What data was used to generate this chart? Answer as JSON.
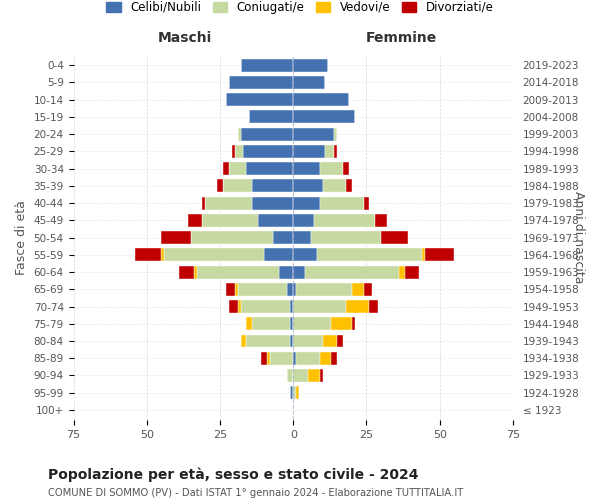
{
  "age_groups": [
    "100+",
    "95-99",
    "90-94",
    "85-89",
    "80-84",
    "75-79",
    "70-74",
    "65-69",
    "60-64",
    "55-59",
    "50-54",
    "45-49",
    "40-44",
    "35-39",
    "30-34",
    "25-29",
    "20-24",
    "15-19",
    "10-14",
    "5-9",
    "0-4"
  ],
  "birth_years": [
    "≤ 1923",
    "1924-1928",
    "1929-1933",
    "1934-1938",
    "1939-1943",
    "1944-1948",
    "1949-1953",
    "1954-1958",
    "1959-1963",
    "1964-1968",
    "1969-1973",
    "1974-1978",
    "1979-1983",
    "1984-1988",
    "1989-1993",
    "1994-1998",
    "1999-2003",
    "2004-2008",
    "2009-2013",
    "2014-2018",
    "2019-2023"
  ],
  "male": {
    "celibi": [
      0,
      1,
      0,
      0,
      1,
      1,
      1,
      2,
      5,
      10,
      7,
      12,
      14,
      14,
      16,
      17,
      18,
      15,
      23,
      22,
      18
    ],
    "coniugati": [
      0,
      0,
      2,
      8,
      15,
      13,
      17,
      17,
      28,
      34,
      28,
      19,
      16,
      10,
      6,
      3,
      1,
      0,
      0,
      0,
      0
    ],
    "vedovi": [
      0,
      0,
      0,
      1,
      2,
      2,
      1,
      1,
      1,
      1,
      0,
      0,
      0,
      0,
      0,
      0,
      0,
      0,
      0,
      0,
      0
    ],
    "divorziati": [
      0,
      0,
      0,
      2,
      0,
      0,
      3,
      3,
      5,
      9,
      10,
      5,
      1,
      2,
      2,
      1,
      0,
      0,
      0,
      0,
      0
    ]
  },
  "female": {
    "nubili": [
      0,
      0,
      0,
      1,
      0,
      0,
      0,
      1,
      4,
      8,
      6,
      7,
      9,
      10,
      9,
      11,
      14,
      21,
      19,
      11,
      12
    ],
    "coniugate": [
      0,
      1,
      5,
      8,
      10,
      13,
      18,
      19,
      32,
      36,
      24,
      21,
      15,
      8,
      8,
      3,
      1,
      0,
      0,
      0,
      0
    ],
    "vedove": [
      0,
      1,
      4,
      4,
      5,
      7,
      8,
      4,
      2,
      1,
      0,
      0,
      0,
      0,
      0,
      0,
      0,
      0,
      0,
      0,
      0
    ],
    "divorziate": [
      0,
      0,
      1,
      2,
      2,
      1,
      3,
      3,
      5,
      10,
      9,
      4,
      2,
      2,
      2,
      1,
      0,
      0,
      0,
      0,
      0
    ]
  },
  "colors": {
    "celibi": "#4472b0",
    "coniugati": "#c5d9a0",
    "vedovi": "#ffc000",
    "divorziati": "#c00000"
  },
  "title": "Popolazione per età, sesso e stato civile - 2024",
  "subtitle": "COMUNE DI SOMMO (PV) - Dati ISTAT 1° gennaio 2024 - Elaborazione TUTTITALIA.IT",
  "xlabel_left": "Maschi",
  "xlabel_right": "Femmine",
  "ylabel_left": "Fasce di età",
  "ylabel_right": "Anni di nascita",
  "xlim": 75,
  "legend_labels": [
    "Celibi/Nubili",
    "Coniugati/e",
    "Vedovi/e",
    "Divorziati/e"
  ],
  "background_color": "#ffffff",
  "grid_color": "#cccccc"
}
